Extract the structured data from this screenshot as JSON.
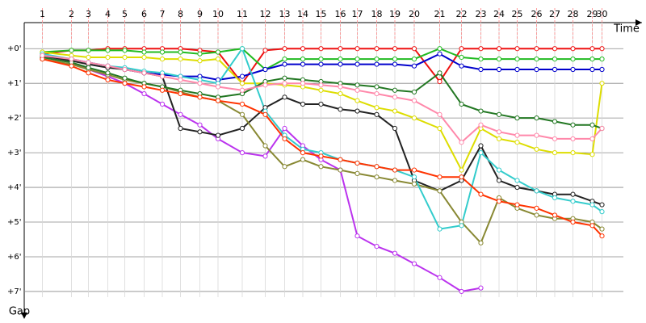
{
  "chart_data": {
    "type": "line",
    "x_label": "Time",
    "y_label": "Gap",
    "xlim": [
      0,
      50.7
    ],
    "ylim": [
      -0.75,
      7.56
    ],
    "xticks": [
      {
        "value": 1.5,
        "label": "1"
      },
      {
        "value": 3.9,
        "label": "2"
      },
      {
        "value": 5.3,
        "label": "3"
      },
      {
        "value": 6.9,
        "label": "4"
      },
      {
        "value": 8.3,
        "label": "5"
      },
      {
        "value": 9.9,
        "label": "6"
      },
      {
        "value": 11.4,
        "label": "7"
      },
      {
        "value": 12.9,
        "label": "8"
      },
      {
        "value": 14.5,
        "label": "9"
      },
      {
        "value": 16,
        "label": "10"
      },
      {
        "value": 18,
        "label": "11"
      },
      {
        "value": 19.9,
        "label": "12"
      },
      {
        "value": 21.5,
        "label": "13"
      },
      {
        "value": 23,
        "label": "14"
      },
      {
        "value": 24.5,
        "label": "15"
      },
      {
        "value": 26.1,
        "label": "16"
      },
      {
        "value": 27.5,
        "label": "17"
      },
      {
        "value": 29.1,
        "label": "18"
      },
      {
        "value": 30.6,
        "label": "19"
      },
      {
        "value": 32.2,
        "label": "20"
      },
      {
        "value": 34.3,
        "label": "21"
      },
      {
        "value": 36.1,
        "label": "22"
      },
      {
        "value": 37.7,
        "label": "23"
      },
      {
        "value": 39.2,
        "label": "24"
      },
      {
        "value": 40.7,
        "label": "25"
      },
      {
        "value": 42.3,
        "label": "26"
      },
      {
        "value": 43.8,
        "label": "27"
      },
      {
        "value": 45.3,
        "label": "28"
      },
      {
        "value": 46.9,
        "label": "29"
      },
      {
        "value": 47.7,
        "label": "30"
      }
    ],
    "yticks": [
      {
        "value": 0,
        "label": "+0'"
      },
      {
        "value": 1,
        "label": "+1'"
      },
      {
        "value": 2,
        "label": "+2'"
      },
      {
        "value": 3,
        "label": "+3'"
      },
      {
        "value": 4,
        "label": "+4'"
      },
      {
        "value": 5,
        "label": "+5'"
      },
      {
        "value": 6,
        "label": "+6'"
      },
      {
        "value": 7,
        "label": "+7'"
      }
    ],
    "x": [
      1.5,
      3.9,
      5.3,
      6.9,
      8.3,
      9.9,
      11.4,
      12.9,
      14.5,
      16,
      18,
      19.9,
      21.5,
      23,
      24.5,
      26.1,
      27.5,
      29.1,
      30.6,
      32.2,
      34.3,
      36.1,
      37.7,
      39.2,
      40.7,
      42.3,
      43.8,
      45.3,
      46.9,
      47.7
    ],
    "series": [
      {
        "color": "#ee1111",
        "values": [
          0.15,
          0.05,
          0.05,
          0,
          0,
          0,
          0,
          0,
          0.05,
          0.1,
          1.0,
          0.05,
          0,
          0,
          0,
          0,
          0,
          0,
          0,
          0,
          0.95,
          0,
          0,
          0,
          0,
          0,
          0,
          0,
          0,
          0
        ]
      },
      {
        "color": "#22bb22",
        "values": [
          0.1,
          0.05,
          0.05,
          0.05,
          0.05,
          0.1,
          0.1,
          0.1,
          0.15,
          0.1,
          0,
          0.6,
          0.3,
          0.3,
          0.3,
          0.3,
          0.3,
          0.3,
          0.3,
          0.3,
          0,
          0.25,
          0.3,
          0.3,
          0.3,
          0.3,
          0.3,
          0.3,
          0.3,
          0.3
        ]
      },
      {
        "color": "#0000cc",
        "values": [
          0.2,
          0.3,
          0.4,
          0.5,
          0.6,
          0.7,
          0.75,
          0.8,
          0.8,
          0.9,
          0.8,
          0.6,
          0.45,
          0.45,
          0.45,
          0.45,
          0.45,
          0.45,
          0.45,
          0.5,
          0.15,
          0.5,
          0.6,
          0.6,
          0.6,
          0.6,
          0.6,
          0.6,
          0.6,
          0.6
        ]
      },
      {
        "color": "#dddd00",
        "values": [
          0.1,
          0.2,
          0.25,
          0.25,
          0.25,
          0.25,
          0.3,
          0.3,
          0.35,
          0.3,
          1.0,
          1.0,
          1.05,
          1.1,
          1.2,
          1.3,
          1.5,
          1.7,
          1.8,
          2.0,
          2.3,
          3.5,
          2.3,
          2.6,
          2.7,
          2.9,
          3.0,
          3.0,
          3.05,
          1.0
        ]
      },
      {
        "color": "#bb33ee",
        "values": [
          0.2,
          0.4,
          0.6,
          0.8,
          1.0,
          1.3,
          1.6,
          1.9,
          2.2,
          2.6,
          3.0,
          3.1,
          2.3,
          2.8,
          3.2,
          3.5,
          5.4,
          5.7,
          5.9,
          6.2,
          6.6,
          7.0,
          6.9,
          null,
          null,
          null,
          null,
          null,
          null,
          null
        ]
      },
      {
        "color": "#222222",
        "values": [
          0.2,
          0.35,
          0.45,
          0.55,
          0.6,
          0.7,
          0.8,
          2.3,
          2.4,
          2.5,
          2.3,
          1.7,
          1.4,
          1.6,
          1.6,
          1.75,
          1.8,
          1.9,
          2.3,
          3.8,
          4.1,
          3.8,
          2.8,
          3.8,
          4.0,
          4.1,
          4.2,
          4.2,
          4.4,
          4.5
        ]
      },
      {
        "color": "#888833",
        "values": [
          0.3,
          0.45,
          0.6,
          0.75,
          0.9,
          1.0,
          1.1,
          1.25,
          1.4,
          1.5,
          1.9,
          2.8,
          3.4,
          3.2,
          3.4,
          3.5,
          3.6,
          3.7,
          3.8,
          3.9,
          4.1,
          5.0,
          5.6,
          4.3,
          4.6,
          4.8,
          4.9,
          4.9,
          5.0,
          5.2
        ]
      },
      {
        "color": "#33cccc",
        "values": [
          0.15,
          0.3,
          0.4,
          0.5,
          0.55,
          0.65,
          0.7,
          0.8,
          0.9,
          1.0,
          0,
          1.8,
          2.5,
          2.9,
          3.0,
          3.2,
          3.3,
          3.4,
          3.5,
          3.7,
          5.2,
          5.1,
          3.0,
          3.5,
          3.8,
          4.1,
          4.3,
          4.4,
          4.5,
          4.7
        ]
      },
      {
        "color": "#227722",
        "values": [
          0.25,
          0.4,
          0.55,
          0.7,
          0.85,
          1.0,
          1.1,
          1.2,
          1.3,
          1.4,
          1.3,
          0.95,
          0.85,
          0.9,
          0.95,
          1.0,
          1.05,
          1.1,
          1.2,
          1.25,
          0.7,
          1.6,
          1.8,
          1.9,
          2.0,
          2.0,
          2.1,
          2.2,
          2.2,
          2.3
        ]
      },
      {
        "color": "#ff3300",
        "values": [
          0.3,
          0.5,
          0.7,
          0.9,
          1.0,
          1.1,
          1.2,
          1.3,
          1.4,
          1.5,
          1.6,
          1.9,
          2.6,
          3.0,
          3.1,
          3.2,
          3.3,
          3.4,
          3.5,
          3.5,
          3.7,
          3.7,
          4.2,
          4.4,
          4.5,
          4.6,
          4.8,
          5.0,
          5.1,
          5.4
        ]
      },
      {
        "color": "#ff88aa",
        "values": [
          0.2,
          0.3,
          0.4,
          0.5,
          0.6,
          0.7,
          0.8,
          0.9,
          1.0,
          1.1,
          1.2,
          1.05,
          1.0,
          1.0,
          1.05,
          1.1,
          1.2,
          1.3,
          1.4,
          1.5,
          1.9,
          2.7,
          2.2,
          2.4,
          2.5,
          2.5,
          2.6,
          2.6,
          2.6,
          2.3
        ]
      }
    ]
  }
}
